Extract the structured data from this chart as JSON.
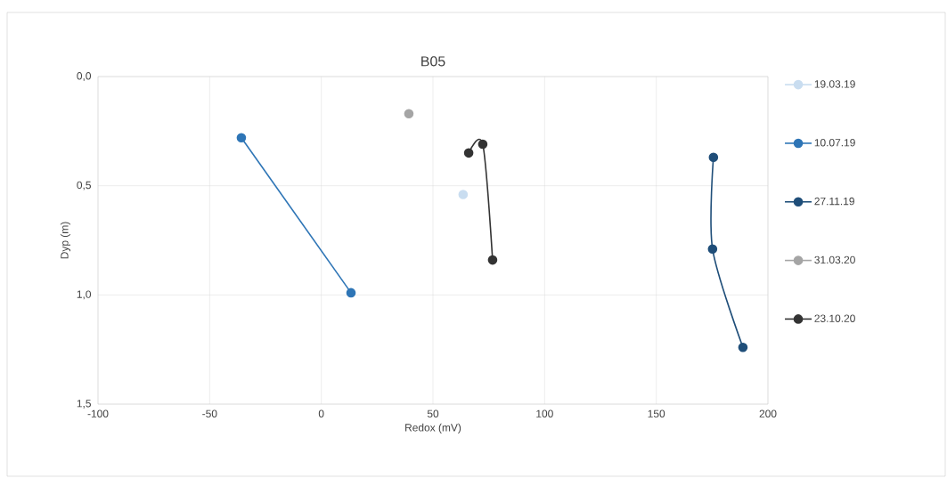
{
  "chart_data": {
    "type": "line",
    "title": "B05",
    "xlabel": "Redox (mV)",
    "ylabel": "Dyp (m)",
    "xlim": [
      -100,
      200
    ],
    "xticks": [
      -100,
      -50,
      0,
      50,
      100,
      150,
      200
    ],
    "ylim": [
      1.5,
      0
    ],
    "yticks": [
      {
        "value": 0,
        "label": "0,0"
      },
      {
        "value": 0.5,
        "label": "0,5"
      },
      {
        "value": 1,
        "label": "1,0"
      },
      {
        "value": 1.5,
        "label": "1,5"
      }
    ],
    "grid": true,
    "legend": "right",
    "marker": "circle",
    "series": [
      {
        "name": "19.03.19",
        "color": "#c9ddf0",
        "x": [
          63.5
        ],
        "values": [
          0.54
        ]
      },
      {
        "name": "10.07.19",
        "color": "#2e75b6",
        "x": [
          -35.8,
          13.3
        ],
        "values": [
          0.28,
          0.99
        ]
      },
      {
        "name": "27.11.19",
        "color": "#1f4e79",
        "x": [
          175.6,
          175.2,
          188.8
        ],
        "values": [
          0.37,
          0.79,
          1.24
        ]
      },
      {
        "name": "31.03.20",
        "color": "#a5a5a5",
        "x": [
          39.2
        ],
        "values": [
          0.17
        ]
      },
      {
        "name": "23.10.20",
        "color": "#333333",
        "x": [
          66,
          72.3,
          76.7
        ],
        "values": [
          0.35,
          0.31,
          0.84
        ]
      }
    ]
  }
}
